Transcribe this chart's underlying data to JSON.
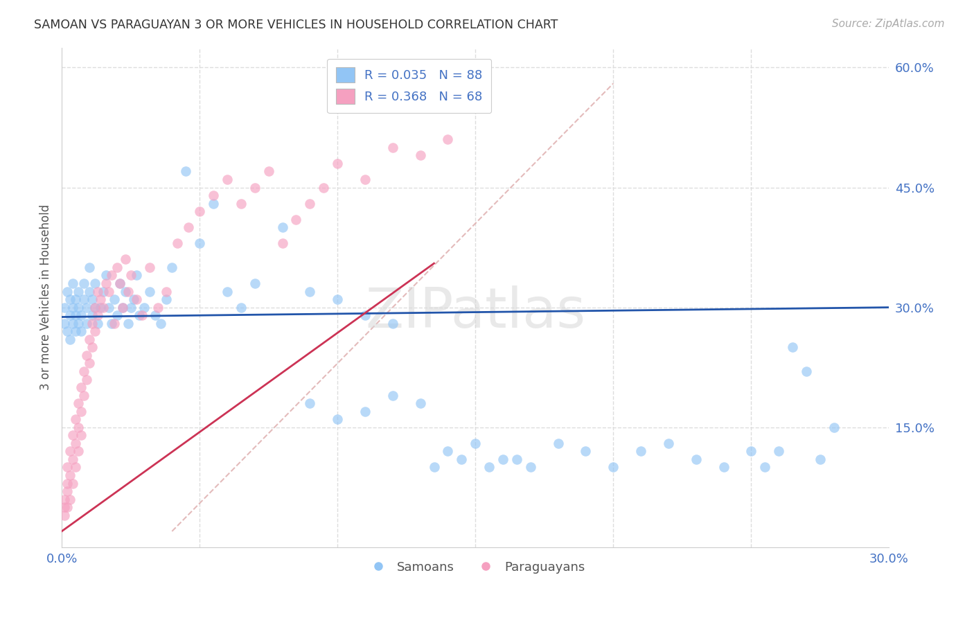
{
  "title": "SAMOAN VS PARAGUAYAN 3 OR MORE VEHICLES IN HOUSEHOLD CORRELATION CHART",
  "source": "Source: ZipAtlas.com",
  "ylabel": "3 or more Vehicles in Household",
  "xlabel_samoan": "Samoans",
  "xlabel_paraguayan": "Paraguayans",
  "watermark_line1": "ZIP",
  "watermark_line2": "atlas",
  "xmin": 0.0,
  "xmax": 0.3,
  "ymin": 0.0,
  "ymax": 0.625,
  "samoan_color": "#92c5f5",
  "paraguayan_color": "#f5a0c0",
  "samoan_line_color": "#2255aa",
  "paraguayan_line_color": "#cc3355",
  "diag_line_color": "#ddaaaa",
  "legend_samoan_label": "R = 0.035   N = 88",
  "legend_paraguayan_label": "R = 0.368   N = 68",
  "R_samoan": 0.035,
  "N_samoan": 88,
  "R_paraguayan": 0.368,
  "N_paraguayan": 68,
  "background_color": "#ffffff",
  "grid_color": "#dddddd",
  "title_color": "#333333",
  "axis_color": "#4472c4",
  "samoan_x": [
    0.001,
    0.001,
    0.002,
    0.002,
    0.003,
    0.003,
    0.003,
    0.004,
    0.004,
    0.004,
    0.005,
    0.005,
    0.005,
    0.006,
    0.006,
    0.006,
    0.007,
    0.007,
    0.008,
    0.008,
    0.009,
    0.009,
    0.01,
    0.01,
    0.011,
    0.011,
    0.012,
    0.012,
    0.013,
    0.014,
    0.015,
    0.016,
    0.017,
    0.018,
    0.019,
    0.02,
    0.021,
    0.022,
    0.023,
    0.024,
    0.025,
    0.026,
    0.027,
    0.028,
    0.03,
    0.032,
    0.034,
    0.036,
    0.038,
    0.04,
    0.045,
    0.05,
    0.055,
    0.06,
    0.065,
    0.07,
    0.08,
    0.09,
    0.1,
    0.11,
    0.12,
    0.13,
    0.14,
    0.15,
    0.16,
    0.17,
    0.18,
    0.19,
    0.2,
    0.21,
    0.22,
    0.23,
    0.24,
    0.25,
    0.255,
    0.26,
    0.265,
    0.27,
    0.275,
    0.28,
    0.09,
    0.1,
    0.11,
    0.12,
    0.135,
    0.145,
    0.155,
    0.165
  ],
  "samoan_y": [
    0.28,
    0.3,
    0.27,
    0.32,
    0.29,
    0.26,
    0.31,
    0.28,
    0.3,
    0.33,
    0.27,
    0.29,
    0.31,
    0.28,
    0.3,
    0.32,
    0.29,
    0.27,
    0.31,
    0.33,
    0.3,
    0.28,
    0.32,
    0.35,
    0.29,
    0.31,
    0.3,
    0.33,
    0.28,
    0.3,
    0.32,
    0.34,
    0.3,
    0.28,
    0.31,
    0.29,
    0.33,
    0.3,
    0.32,
    0.28,
    0.3,
    0.31,
    0.34,
    0.29,
    0.3,
    0.32,
    0.29,
    0.28,
    0.31,
    0.35,
    0.47,
    0.38,
    0.43,
    0.32,
    0.3,
    0.33,
    0.4,
    0.32,
    0.31,
    0.29,
    0.28,
    0.18,
    0.12,
    0.13,
    0.11,
    0.1,
    0.13,
    0.12,
    0.1,
    0.12,
    0.13,
    0.11,
    0.1,
    0.12,
    0.1,
    0.12,
    0.25,
    0.22,
    0.11,
    0.15,
    0.18,
    0.16,
    0.17,
    0.19,
    0.1,
    0.11,
    0.1,
    0.11
  ],
  "paraguayan_x": [
    0.001,
    0.001,
    0.001,
    0.002,
    0.002,
    0.002,
    0.002,
    0.003,
    0.003,
    0.003,
    0.004,
    0.004,
    0.004,
    0.005,
    0.005,
    0.005,
    0.006,
    0.006,
    0.006,
    0.007,
    0.007,
    0.007,
    0.008,
    0.008,
    0.009,
    0.009,
    0.01,
    0.01,
    0.011,
    0.011,
    0.012,
    0.012,
    0.013,
    0.013,
    0.014,
    0.015,
    0.016,
    0.017,
    0.018,
    0.019,
    0.02,
    0.021,
    0.022,
    0.023,
    0.024,
    0.025,
    0.027,
    0.029,
    0.032,
    0.035,
    0.038,
    0.042,
    0.046,
    0.05,
    0.055,
    0.06,
    0.065,
    0.07,
    0.075,
    0.08,
    0.085,
    0.09,
    0.095,
    0.1,
    0.11,
    0.12,
    0.13,
    0.14
  ],
  "paraguayan_y": [
    0.04,
    0.06,
    0.05,
    0.08,
    0.07,
    0.1,
    0.05,
    0.09,
    0.12,
    0.06,
    0.11,
    0.14,
    0.08,
    0.13,
    0.16,
    0.1,
    0.15,
    0.18,
    0.12,
    0.17,
    0.2,
    0.14,
    0.19,
    0.22,
    0.21,
    0.24,
    0.23,
    0.26,
    0.25,
    0.28,
    0.27,
    0.3,
    0.29,
    0.32,
    0.31,
    0.3,
    0.33,
    0.32,
    0.34,
    0.28,
    0.35,
    0.33,
    0.3,
    0.36,
    0.32,
    0.34,
    0.31,
    0.29,
    0.35,
    0.3,
    0.32,
    0.38,
    0.4,
    0.42,
    0.44,
    0.46,
    0.43,
    0.45,
    0.47,
    0.38,
    0.41,
    0.43,
    0.45,
    0.48,
    0.46,
    0.5,
    0.49,
    0.51
  ]
}
